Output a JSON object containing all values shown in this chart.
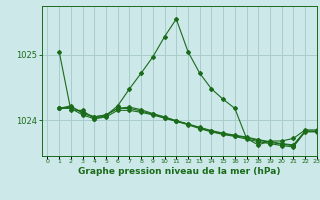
{
  "title": "Graphe pression niveau de la mer (hPa)",
  "bg_color": "#cce8e8",
  "grid_color": "#aacccc",
  "line_color": "#1a6b1a",
  "xlim": [
    -0.5,
    23
  ],
  "ylim": [
    1023.45,
    1025.75
  ],
  "yticks": [
    1024,
    1025
  ],
  "xticks": [
    0,
    1,
    2,
    3,
    4,
    5,
    6,
    7,
    8,
    9,
    10,
    11,
    12,
    13,
    14,
    15,
    16,
    17,
    18,
    19,
    20,
    21,
    22,
    23
  ],
  "series1_x": [
    1,
    2,
    3,
    4,
    5,
    6,
    7,
    8,
    9,
    10,
    11,
    12,
    13,
    14,
    15,
    16,
    17,
    18,
    19,
    20,
    21,
    22,
    23
  ],
  "series1_y": [
    1025.05,
    1024.15,
    1024.15,
    1024.02,
    1024.07,
    1024.22,
    1024.48,
    1024.72,
    1024.97,
    1025.28,
    1025.55,
    1025.05,
    1024.72,
    1024.48,
    1024.32,
    1024.18,
    1023.72,
    1023.62,
    1023.68,
    1023.68,
    1023.72,
    1023.85,
    1023.85
  ],
  "series2_x": [
    1,
    2,
    3,
    4,
    5,
    6,
    7,
    8,
    9,
    10,
    11,
    12,
    13,
    14,
    15,
    16,
    17,
    18,
    19,
    20,
    21,
    22,
    23
  ],
  "series2_y": [
    1024.18,
    1024.18,
    1024.08,
    1024.02,
    1024.05,
    1024.15,
    1024.15,
    1024.12,
    1024.08,
    1024.03,
    1023.98,
    1023.93,
    1023.87,
    1023.82,
    1023.78,
    1023.75,
    1023.71,
    1023.67,
    1023.64,
    1023.61,
    1023.59,
    1023.82,
    1023.82
  ],
  "series3_x": [
    1,
    2,
    3,
    4,
    5,
    6,
    7,
    8,
    9,
    10,
    11,
    12,
    13,
    14,
    15,
    16,
    17,
    18,
    19,
    20,
    21,
    22,
    23
  ],
  "series3_y": [
    1024.18,
    1024.22,
    1024.1,
    1024.05,
    1024.08,
    1024.18,
    1024.18,
    1024.14,
    1024.09,
    1024.04,
    1023.99,
    1023.94,
    1023.88,
    1023.83,
    1023.79,
    1023.76,
    1023.73,
    1023.69,
    1023.66,
    1023.63,
    1023.61,
    1023.83,
    1023.83
  ],
  "series4_x": [
    1,
    2,
    3,
    4,
    5,
    6,
    7,
    8,
    9,
    10,
    11,
    12,
    13,
    14,
    15,
    16,
    17,
    18,
    19,
    20,
    21,
    22,
    23
  ],
  "series4_y": [
    1024.18,
    1024.2,
    1024.12,
    1024.05,
    1024.08,
    1024.18,
    1024.2,
    1024.16,
    1024.1,
    1024.05,
    1023.99,
    1023.94,
    1023.89,
    1023.84,
    1023.8,
    1023.77,
    1023.74,
    1023.7,
    1023.67,
    1023.64,
    1023.62,
    1023.83,
    1023.83
  ]
}
